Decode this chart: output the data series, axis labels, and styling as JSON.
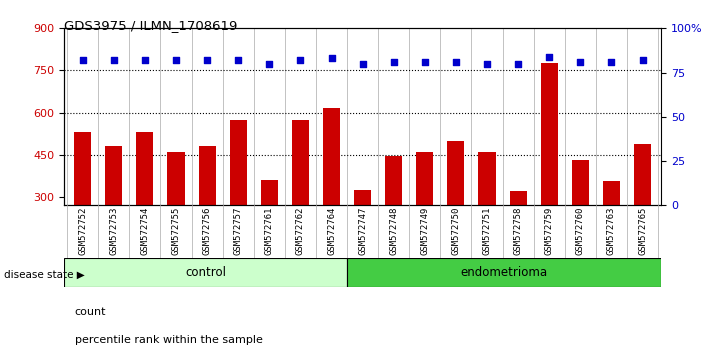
{
  "title": "GDS3975 / ILMN_1708619",
  "samples": [
    "GSM572752",
    "GSM572753",
    "GSM572754",
    "GSM572755",
    "GSM572756",
    "GSM572757",
    "GSM572761",
    "GSM572762",
    "GSM572764",
    "GSM572747",
    "GSM572748",
    "GSM572749",
    "GSM572750",
    "GSM572751",
    "GSM572758",
    "GSM572759",
    "GSM572760",
    "GSM572763",
    "GSM572765"
  ],
  "counts": [
    530,
    480,
    530,
    460,
    480,
    575,
    360,
    575,
    615,
    325,
    445,
    460,
    500,
    460,
    320,
    775,
    430,
    355,
    490
  ],
  "percentiles": [
    82,
    82,
    82,
    82,
    82,
    82,
    80,
    82,
    83,
    80,
    81,
    81,
    81,
    80,
    80,
    84,
    81,
    81,
    82
  ],
  "control_count": 9,
  "endometrioma_count": 10,
  "ylim_left": [
    270,
    900
  ],
  "ylim_right": [
    0,
    100
  ],
  "yticks_left": [
    300,
    450,
    600,
    750,
    900
  ],
  "yticks_right": [
    0,
    25,
    50,
    75,
    100
  ],
  "hlines": [
    450,
    600,
    750
  ],
  "bar_color": "#cc0000",
  "dot_color": "#0000cc",
  "bar_bottom": 270,
  "control_bg": "#ccffcc",
  "endometrioma_bg": "#44cc44",
  "plot_bg": "#ffffff",
  "tick_bg": "#d0d0d0",
  "legend_count_label": "count",
  "legend_pct_label": "percentile rank within the sample",
  "disease_state_label": "disease state",
  "control_label": "control",
  "endometrioma_label": "endometrioma"
}
